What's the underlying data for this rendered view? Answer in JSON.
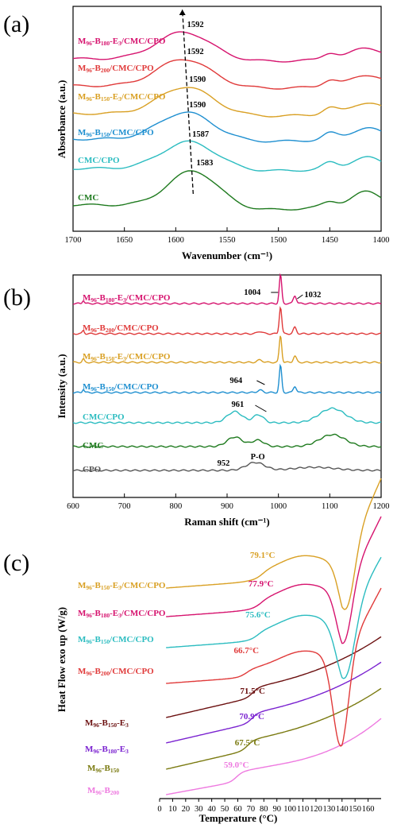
{
  "chart_data": [
    {
      "panel": "(a)",
      "type": "line",
      "xlabel": "Wavenumber (cm⁻¹)",
      "ylabel": "Absorbance (a.u.)",
      "xlim": [
        1700,
        1400
      ],
      "xticks": [
        1700,
        1650,
        1600,
        1550,
        1500,
        1450,
        1400
      ],
      "series": [
        {
          "name": "CMC",
          "label": {
            "pre": "CMC",
            "parts": []
          },
          "color": "#1e7a1e",
          "peak": 1583,
          "peak_label": "1583",
          "offset": 0
        },
        {
          "name": "CMC/CPO",
          "label": {
            "pre": "CMC/CPO",
            "parts": []
          },
          "color": "#2bbcc0",
          "peak": 1587,
          "peak_label": "1587",
          "offset": 1
        },
        {
          "name": "M96-B150/CMC/CPO",
          "label": {
            "pre": "M",
            "parts": [
              [
                "96",
                "sub"
              ],
              [
                "-B",
                ""
              ],
              [
                "150",
                "sub"
              ],
              [
                "/CMC/CPO",
                ""
              ]
            ]
          },
          "color": "#1e8fd0",
          "peak": 1590,
          "peak_label": "1590",
          "offset": 2
        },
        {
          "name": "M96-B150-E3/CMC/CPO",
          "label": {
            "pre": "M",
            "parts": [
              [
                "96",
                "sub"
              ],
              [
                "-B",
                ""
              ],
              [
                "150",
                "sub"
              ],
              [
                "-E",
                ""
              ],
              [
                "3",
                "sub"
              ],
              [
                "/CMC/CPO",
                ""
              ]
            ]
          },
          "color": "#d9a024",
          "peak": 1590,
          "peak_label": "1590",
          "offset": 3
        },
        {
          "name": "M96-B200/CMC/CPO",
          "label": {
            "pre": "M",
            "parts": [
              [
                "96",
                "sub"
              ],
              [
                "-B",
                ""
              ],
              [
                "200",
                "sub"
              ],
              [
                "/CMC/CPO",
                ""
              ]
            ]
          },
          "color": "#e03a3a",
          "peak": 1592,
          "peak_label": "1592",
          "offset": 4
        },
        {
          "name": "M96-B180-E3/CMC/CPO",
          "label": {
            "pre": "M",
            "parts": [
              [
                "96",
                "sub"
              ],
              [
                "-B",
                ""
              ],
              [
                "180",
                "sub"
              ],
              [
                "-E",
                ""
              ],
              [
                "3",
                "sub"
              ],
              [
                "/CMC/CPO",
                ""
              ]
            ]
          },
          "color": "#d6136e",
          "peak": 1592,
          "peak_label": "1592",
          "offset": 5
        }
      ]
    },
    {
      "panel": "(b)",
      "type": "line",
      "xlabel": "Raman shift (cm⁻¹)",
      "ylabel": "Intensity (a.u.)",
      "xlim": [
        600,
        1200
      ],
      "xticks": [
        600,
        700,
        800,
        900,
        1000,
        1100,
        1200
      ],
      "annotations": {
        "p1004": "1004",
        "p1032": "1032",
        "p964": "964",
        "p961": "961",
        "p952": "952",
        "po": "P-O"
      },
      "series": [
        {
          "name": "CPO",
          "label": {
            "pre": "CPO",
            "parts": []
          },
          "color": "#555555"
        },
        {
          "name": "CMC",
          "label": {
            "pre": "CMC",
            "parts": []
          },
          "color": "#1e7a1e"
        },
        {
          "name": "CMC/CPO",
          "label": {
            "pre": "CMC/CPO",
            "parts": []
          },
          "color": "#2bbcc0"
        },
        {
          "name": "M96-B150/CMC/CPO",
          "label": {
            "pre": "M",
            "parts": [
              [
                "96",
                "sub"
              ],
              [
                "-B",
                ""
              ],
              [
                "150",
                "sub"
              ],
              [
                "/CMC/CPO",
                ""
              ]
            ]
          },
          "color": "#1e8fd0"
        },
        {
          "name": "M96-B150-E3/CMC/CPO",
          "label": {
            "pre": "M",
            "parts": [
              [
                "96",
                "sub"
              ],
              [
                "-B",
                ""
              ],
              [
                "150",
                "sub"
              ],
              [
                "-E",
                ""
              ],
              [
                "3",
                "sub"
              ],
              [
                "/CMC/CPO",
                ""
              ]
            ]
          },
          "color": "#d9a024"
        },
        {
          "name": "M96-B200/CMC/CPO",
          "label": {
            "pre": "M",
            "parts": [
              [
                "96",
                "sub"
              ],
              [
                "-B",
                ""
              ],
              [
                "200",
                "sub"
              ],
              [
                "/CMC/CPO",
                ""
              ]
            ]
          },
          "color": "#e03a3a"
        },
        {
          "name": "M96-B180-E3/CMC/CPO",
          "label": {
            "pre": "M",
            "parts": [
              [
                "96",
                "sub"
              ],
              [
                "-B",
                ""
              ],
              [
                "180",
                "sub"
              ],
              [
                "-E",
                ""
              ],
              [
                "3",
                "sub"
              ],
              [
                "/CMC/CPO",
                ""
              ]
            ]
          },
          "color": "#d6136e"
        }
      ]
    },
    {
      "panel": "(c)",
      "type": "line",
      "xlabel": "Temperature (°C)",
      "ylabel": "Heat Flow exo up (W/g)",
      "xlim": [
        0,
        170
      ],
      "xticks": [
        0,
        10,
        20,
        30,
        40,
        50,
        60,
        70,
        80,
        90,
        100,
        110,
        120,
        130,
        140,
        150,
        160
      ],
      "series": [
        {
          "name": "M96-B200",
          "label": {
            "pre": "M",
            "parts": [
              [
                "96",
                "sub"
              ],
              [
                "-B",
                ""
              ],
              [
                "200",
                "sub"
              ]
            ]
          },
          "color": "#ee7ae0",
          "tg": 59.0,
          "tg_label": "59.0°C"
        },
        {
          "name": "M96-B150",
          "label": {
            "pre": "M",
            "parts": [
              [
                "96",
                "sub"
              ],
              [
                "-B",
                ""
              ],
              [
                "150",
                "sub"
              ]
            ]
          },
          "color": "#7a7a10",
          "tg": 67.5,
          "tg_label": "67.5°C"
        },
        {
          "name": "M96-B180-E3",
          "label": {
            "pre": "M",
            "parts": [
              [
                "96",
                "sub"
              ],
              [
                "-B",
                ""
              ],
              [
                "180",
                "sub"
              ],
              [
                "-E",
                ""
              ],
              [
                "3",
                "sub"
              ]
            ]
          },
          "color": "#7a22d0",
          "tg": 70.9,
          "tg_label": "70.9°C"
        },
        {
          "name": "M96-B150-E3",
          "label": {
            "pre": "M",
            "parts": [
              [
                "96",
                "sub"
              ],
              [
                "-B",
                ""
              ],
              [
                "150",
                "sub"
              ],
              [
                "-E",
                ""
              ],
              [
                "3",
                "sub"
              ]
            ]
          },
          "color": "#6b0f0f",
          "tg": 71.5,
          "tg_label": "71.5°C"
        },
        {
          "name": "M96-B200/CMC/CPO",
          "label": {
            "pre": "M",
            "parts": [
              [
                "96",
                "sub"
              ],
              [
                "-B",
                ""
              ],
              [
                "200",
                "sub"
              ],
              [
                "/CMC/CPO",
                ""
              ]
            ]
          },
          "color": "#e03a3a",
          "tg": 66.7,
          "tg_label": "66.7°C"
        },
        {
          "name": "M96-B150/CMC/CPO",
          "label": {
            "pre": "M",
            "parts": [
              [
                "96",
                "sub"
              ],
              [
                "-B",
                ""
              ],
              [
                "150",
                "sub"
              ],
              [
                "/CMC/CPO",
                ""
              ]
            ]
          },
          "color": "#2bbcc0",
          "tg": 75.6,
          "tg_label": "75.6°C"
        },
        {
          "name": "M96-B180-E3/CMC/CPO",
          "label": {
            "pre": "M",
            "parts": [
              [
                "96",
                "sub"
              ],
              [
                "-B",
                ""
              ],
              [
                "180",
                "sub"
              ],
              [
                "-E",
                ""
              ],
              [
                "3",
                "sub"
              ],
              [
                "/CMC/CPO",
                ""
              ]
            ]
          },
          "color": "#d6136e",
          "tg": 77.9,
          "tg_label": "77.9°C"
        },
        {
          "name": "M96-B150-E3/CMC/CPO",
          "label": {
            "pre": "M",
            "parts": [
              [
                "96",
                "sub"
              ],
              [
                "-B",
                ""
              ],
              [
                "150",
                "sub"
              ],
              [
                "-E",
                ""
              ],
              [
                "3",
                "sub"
              ],
              [
                "/CMC/CPO",
                ""
              ]
            ]
          },
          "color": "#d9a024",
          "tg": 79.1,
          "tg_label": "79.1°C"
        }
      ]
    }
  ]
}
